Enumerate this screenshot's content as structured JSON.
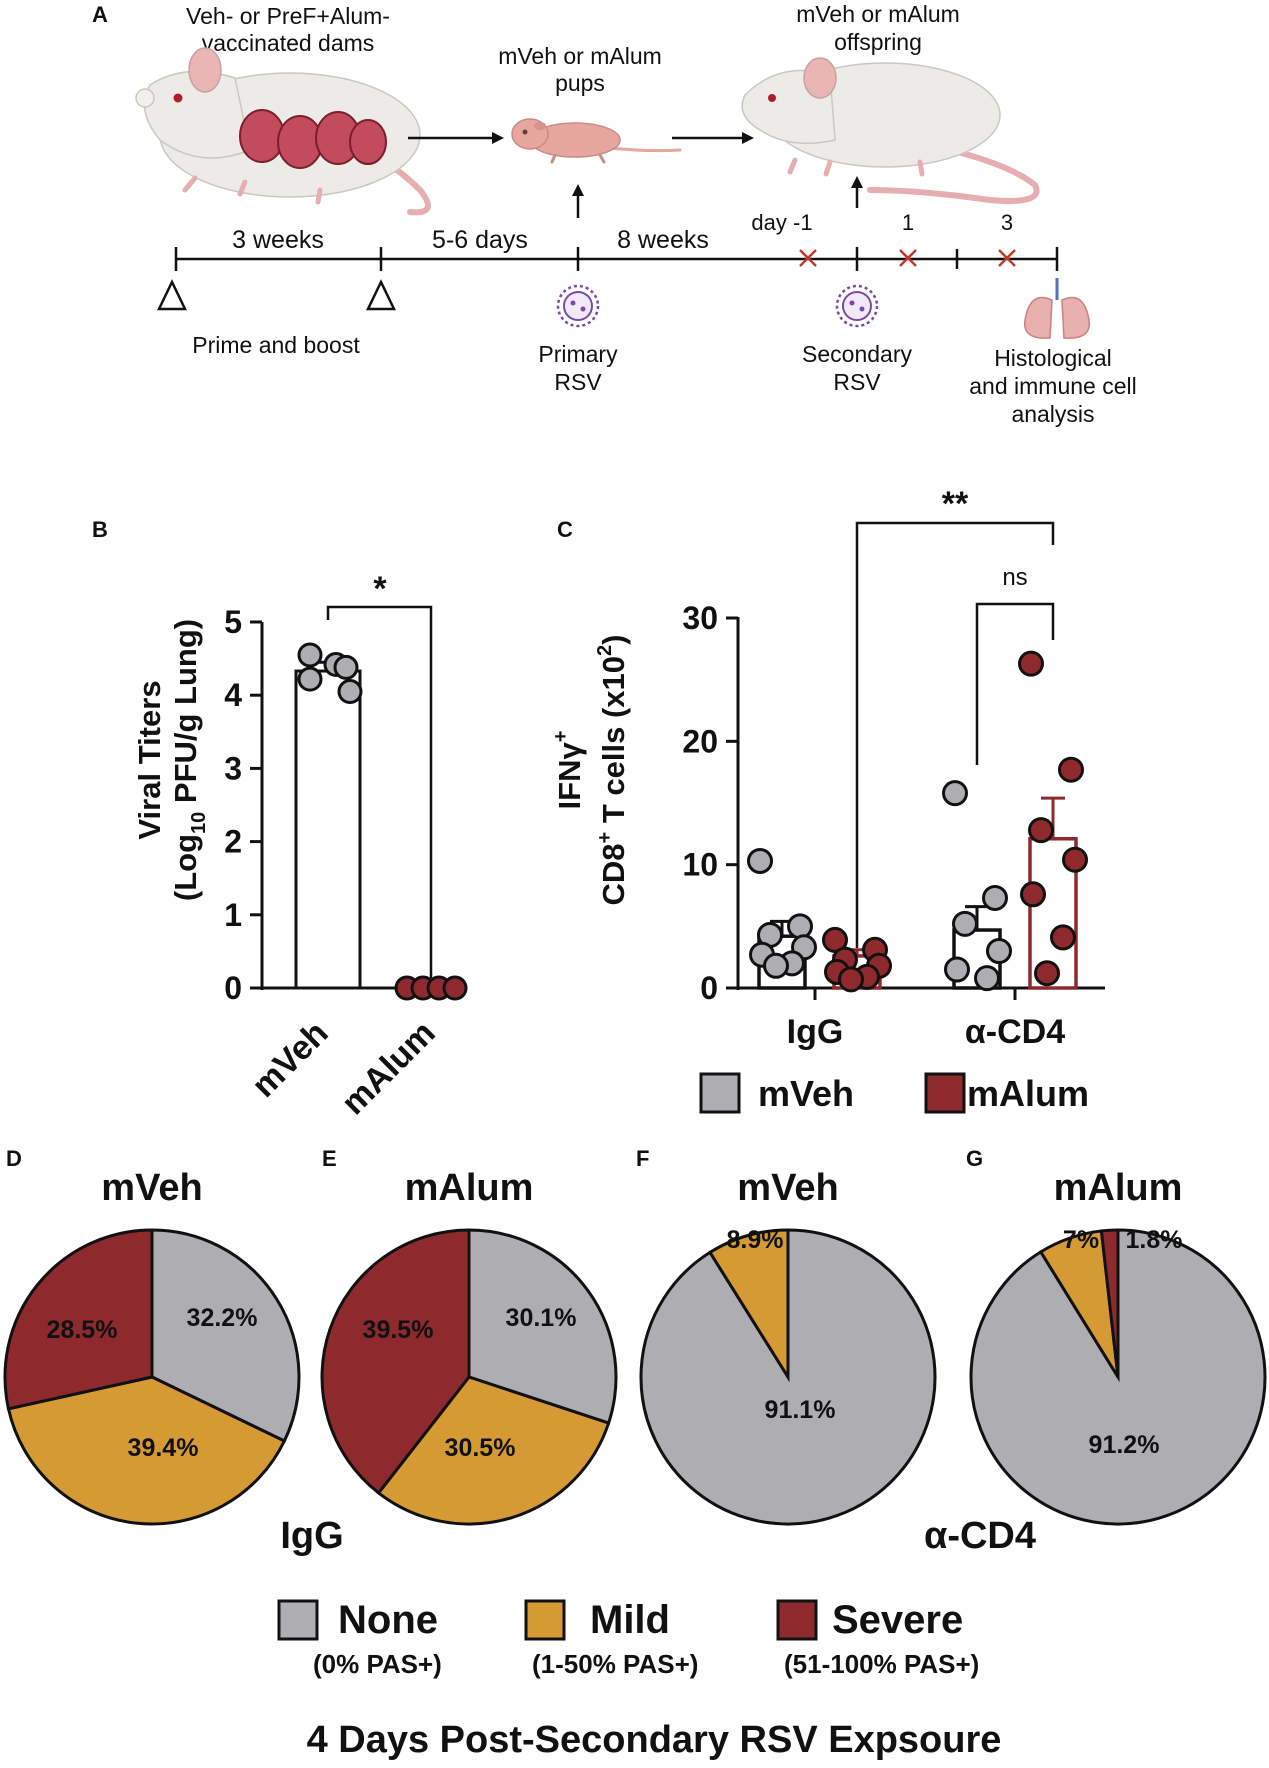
{
  "colors": {
    "grey": "#aeaeb2",
    "mild": "#d69a35",
    "severe": "#8e2a2e",
    "axis": "#111111",
    "mouse_body": "#ecebe7",
    "mouse_ear": "#e9b5b5",
    "pup": "#e8a6a0",
    "virus": "#7b4aa3",
    "tick_mark": "#c0392b"
  },
  "panel_labels": {
    "a": "A",
    "b": "B",
    "c": "C",
    "d": "D",
    "e": "E",
    "f": "F",
    "g": "G"
  },
  "schematic": {
    "dams_label_1": "Veh- or PreF+Alum-",
    "dams_label_2": "vaccinated dams",
    "pups_label_1": "mVeh or mAlum",
    "pups_label_2": "pups",
    "offspring_label_1": "mVeh or mAlum",
    "offspring_label_2": "offspring",
    "interval_1": "3 weeks",
    "interval_2": "5-6 days",
    "interval_3": "8 weeks",
    "day_minus1": "day -1",
    "day_1": "1",
    "day_3": "3",
    "prime_boost": "Prime and boost",
    "primary_1": "Primary",
    "primary_2": "RSV",
    "secondary_1": "Secondary",
    "secondary_2": "RSV",
    "analysis_1": "Histological",
    "analysis_2": "and immune cell",
    "analysis_3": "analysis"
  },
  "chart_data": [
    {
      "panel": "B",
      "type": "bar",
      "ylabel_line1": "Viral Titers",
      "ylabel_pre": "(Log",
      "ylabel_sub": "10",
      "ylabel_post": " PFU/g Lung)",
      "ylim": [
        0,
        5
      ],
      "yticks": [
        "0",
        "1",
        "2",
        "3",
        "4",
        "5"
      ],
      "categories": [
        "mVeh",
        "mAlum"
      ],
      "means": [
        4.33,
        0
      ],
      "sem": [
        0.12,
        0
      ],
      "points": [
        [
          4.55,
          4.42,
          4.38,
          4.22,
          4.05
        ],
        [
          0,
          0,
          0,
          0
        ]
      ],
      "significance": "*"
    },
    {
      "panel": "C",
      "type": "bar",
      "ylabel_line1_pre": "IFN",
      "ylabel_line1_gamma": "γ",
      "ylabel_line1_sup": "+",
      "ylabel_line2_pre": "CD8",
      "ylabel_line2_sup": "+",
      "ylabel_line2_mid": " T cells (x10",
      "ylabel_line2_sup2": "2",
      "ylabel_line2_post": ")",
      "ylim": [
        0,
        30
      ],
      "yticks": [
        "0",
        "10",
        "20",
        "30"
      ],
      "categories": [
        "IgG",
        "α-CD4"
      ],
      "series": [
        {
          "name": "mVeh",
          "means": [
            4.2,
            4.7
          ],
          "sem": [
            1.2,
            1.9
          ],
          "points": [
            [
              10.3,
              5.0,
              4.3,
              3.3,
              2.7,
              2.0,
              1.8
            ],
            [
              15.8,
              7.3,
              5.2,
              3.0,
              1.5,
              0.8
            ]
          ]
        },
        {
          "name": "mAlum",
          "means": [
            2.6,
            12.1
          ],
          "sem": [
            0.5,
            3.3
          ],
          "points": [
            [
              3.9,
              3.1,
              2.3,
              1.8,
              1.3,
              0.9,
              0.7
            ],
            [
              26.3,
              17.7,
              12.8,
              10.4,
              7.6,
              4.1,
              1.2
            ]
          ]
        }
      ],
      "sig_top": "**",
      "sig_inner": "ns",
      "legend": [
        "mVeh",
        "mAlum"
      ]
    },
    {
      "panel": "D",
      "type": "pie",
      "title": "mVeh",
      "group": "IgG",
      "slices": [
        {
          "name": "None",
          "value": 32.2,
          "label": "32.2%"
        },
        {
          "name": "Mild",
          "value": 39.4,
          "label": "39.4%"
        },
        {
          "name": "Severe",
          "value": 28.5,
          "label": "28.5%"
        }
      ]
    },
    {
      "panel": "E",
      "type": "pie",
      "title": "mAlum",
      "group": "IgG",
      "slices": [
        {
          "name": "None",
          "value": 30.1,
          "label": "30.1%"
        },
        {
          "name": "Mild",
          "value": 30.5,
          "label": "30.5%"
        },
        {
          "name": "Severe",
          "value": 39.5,
          "label": "39.5%"
        }
      ]
    },
    {
      "panel": "F",
      "type": "pie",
      "title": "mVeh",
      "group": "α-CD4",
      "slices": [
        {
          "name": "None",
          "value": 91.1,
          "label": "91.1%"
        },
        {
          "name": "Mild",
          "value": 8.9,
          "label": "8.9%"
        },
        {
          "name": "Severe",
          "value": 0,
          "label": ""
        }
      ]
    },
    {
      "panel": "G",
      "type": "pie",
      "title": "mAlum",
      "group": "α-CD4",
      "slices": [
        {
          "name": "None",
          "value": 91.2,
          "label": "91.2%"
        },
        {
          "name": "Mild",
          "value": 7.0,
          "label": "7%"
        },
        {
          "name": "Severe",
          "value": 1.8,
          "label": "1.8%"
        }
      ]
    }
  ],
  "pie_groups": {
    "igg": "IgG",
    "acd4": "α-CD4"
  },
  "legend_bottom": [
    {
      "name": "None",
      "sub": "(0% PAS+)"
    },
    {
      "name": "Mild",
      "sub": "(1-50% PAS+)"
    },
    {
      "name": "Severe",
      "sub": "(51-100% PAS+)"
    }
  ],
  "footer": "4 Days Post-Secondary RSV Expsoure"
}
